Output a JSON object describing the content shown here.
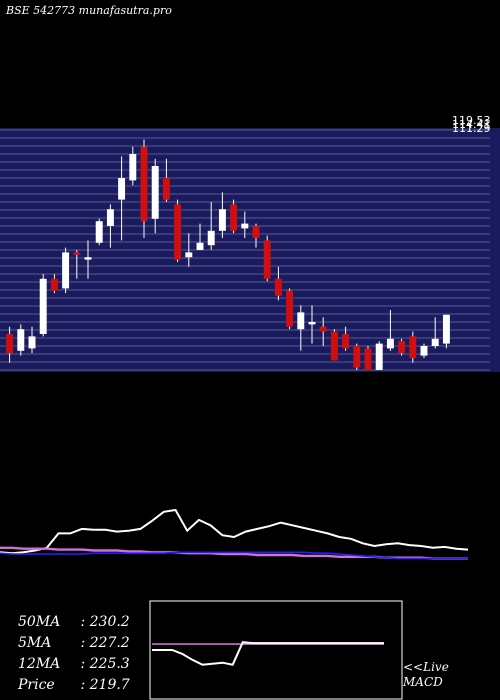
{
  "header": {
    "exchange": "BSE",
    "code": "542773",
    "site": "munafasutra.pro"
  },
  "colors": {
    "background": "#000000",
    "price_panel_bg": "#1a1a5e",
    "grid_line": "#ffffff",
    "up_candle": "#ffffff",
    "down_candle": "#d01010",
    "ma_fast_line": "#ffffff",
    "ma_slow_line": "#d070d0",
    "ma_blue_line": "#2020ff",
    "macd_line": "#ffffff",
    "signal_line": "#d070d0"
  },
  "price_axis_labels": [
    "119.53",
    "114.41",
    "111.29"
  ],
  "stats": [
    {
      "label": "50MA",
      "value": "230.2"
    },
    {
      "label": "5MA",
      "value": "227.2"
    },
    {
      "label": "12MA",
      "value": "225.3"
    },
    {
      "label": "Price",
      "value": "219.7"
    }
  ],
  "live_link": {
    "line1": "<<Live",
    "line2": "MACD"
  },
  "chart_data": {
    "type": "candlestick",
    "candles": [
      {
        "o": 0.15,
        "c": 0.07,
        "h": 0.18,
        "l": 0.03
      },
      {
        "o": 0.08,
        "c": 0.17,
        "h": 0.19,
        "l": 0.06
      },
      {
        "o": 0.09,
        "c": 0.14,
        "h": 0.18,
        "l": 0.07
      },
      {
        "o": 0.15,
        "c": 0.38,
        "h": 0.4,
        "l": 0.14
      },
      {
        "o": 0.38,
        "c": 0.33,
        "h": 0.4,
        "l": 0.32
      },
      {
        "o": 0.34,
        "c": 0.49,
        "h": 0.51,
        "l": 0.32
      },
      {
        "o": 0.49,
        "c": 0.48,
        "h": 0.5,
        "l": 0.38
      },
      {
        "o": 0.46,
        "c": 0.47,
        "h": 0.54,
        "l": 0.38
      },
      {
        "o": 0.53,
        "c": 0.62,
        "h": 0.63,
        "l": 0.52
      },
      {
        "o": 0.6,
        "c": 0.67,
        "h": 0.69,
        "l": 0.51
      },
      {
        "o": 0.71,
        "c": 0.8,
        "h": 0.89,
        "l": 0.54
      },
      {
        "o": 0.79,
        "c": 0.9,
        "h": 0.93,
        "l": 0.77
      },
      {
        "o": 0.93,
        "c": 0.62,
        "h": 0.96,
        "l": 0.55
      },
      {
        "o": 0.63,
        "c": 0.85,
        "h": 0.88,
        "l": 0.57
      },
      {
        "o": 0.8,
        "c": 0.71,
        "h": 0.88,
        "l": 0.7
      },
      {
        "o": 0.69,
        "c": 0.46,
        "h": 0.71,
        "l": 0.45
      },
      {
        "o": 0.47,
        "c": 0.49,
        "h": 0.57,
        "l": 0.43
      },
      {
        "o": 0.5,
        "c": 0.53,
        "h": 0.61,
        "l": 0.5
      },
      {
        "o": 0.52,
        "c": 0.58,
        "h": 0.7,
        "l": 0.5
      },
      {
        "o": 0.58,
        "c": 0.67,
        "h": 0.74,
        "l": 0.55
      },
      {
        "o": 0.69,
        "c": 0.58,
        "h": 0.71,
        "l": 0.57
      },
      {
        "o": 0.59,
        "c": 0.61,
        "h": 0.66,
        "l": 0.55
      },
      {
        "o": 0.6,
        "c": 0.55,
        "h": 0.61,
        "l": 0.51
      },
      {
        "o": 0.54,
        "c": 0.38,
        "h": 0.56,
        "l": 0.37
      },
      {
        "o": 0.38,
        "c": 0.31,
        "h": 0.43,
        "l": 0.29
      },
      {
        "o": 0.33,
        "c": 0.18,
        "h": 0.34,
        "l": 0.17
      },
      {
        "o": 0.17,
        "c": 0.24,
        "h": 0.27,
        "l": 0.08
      },
      {
        "o": 0.19,
        "c": 0.2,
        "h": 0.27,
        "l": 0.11
      },
      {
        "o": 0.18,
        "c": 0.16,
        "h": 0.22,
        "l": 0.1
      },
      {
        "o": 0.16,
        "c": 0.04,
        "h": 0.17,
        "l": 0.04
      },
      {
        "o": 0.15,
        "c": 0.09,
        "h": 0.18,
        "l": 0.08
      },
      {
        "o": 0.1,
        "c": 0.01,
        "h": 0.11,
        "l": 0.0
      },
      {
        "o": 0.09,
        "c": 0.0,
        "h": 0.1,
        "l": 0.0
      },
      {
        "o": 0.0,
        "c": 0.11,
        "h": 0.12,
        "l": 0.0
      },
      {
        "o": 0.09,
        "c": 0.13,
        "h": 0.25,
        "l": 0.08
      },
      {
        "o": 0.12,
        "c": 0.07,
        "h": 0.13,
        "l": 0.06
      },
      {
        "o": 0.14,
        "c": 0.05,
        "h": 0.16,
        "l": 0.03
      },
      {
        "o": 0.06,
        "c": 0.1,
        "h": 0.11,
        "l": 0.05
      },
      {
        "o": 0.1,
        "c": 0.13,
        "h": 0.22,
        "l": 0.09
      },
      {
        "o": 0.11,
        "c": 0.23,
        "h": 0.23,
        "l": 0.09
      }
    ],
    "indicator_lines": [
      {
        "name": "fast",
        "values": [
          0.53,
          0.52,
          0.53,
          0.55,
          0.58,
          0.74,
          0.74,
          0.79,
          0.78,
          0.78,
          0.76,
          0.77,
          0.79,
          0.88,
          0.98,
          1.0,
          0.77,
          0.89,
          0.83,
          0.72,
          0.7,
          0.76,
          0.79,
          0.82,
          0.86,
          0.83,
          0.8,
          0.77,
          0.74,
          0.7,
          0.68,
          0.63,
          0.6,
          0.62,
          0.63,
          0.61,
          0.6,
          0.58,
          0.59,
          0.57,
          0.56
        ]
      },
      {
        "name": "slow",
        "values": [
          0.58,
          0.58,
          0.57,
          0.57,
          0.57,
          0.56,
          0.56,
          0.56,
          0.55,
          0.55,
          0.55,
          0.54,
          0.54,
          0.53,
          0.53,
          0.53,
          0.52,
          0.52,
          0.52,
          0.51,
          0.51,
          0.51,
          0.5,
          0.5,
          0.5,
          0.5,
          0.49,
          0.49,
          0.49,
          0.48,
          0.48,
          0.48,
          0.48,
          0.47,
          0.47,
          0.47,
          0.47,
          0.46,
          0.46,
          0.46,
          0.46
        ]
      },
      {
        "name": "blue",
        "values": [
          0.52,
          0.51,
          0.51,
          0.51,
          0.51,
          0.51,
          0.51,
          0.51,
          0.52,
          0.52,
          0.52,
          0.52,
          0.52,
          0.52,
          0.52,
          0.53,
          0.53,
          0.53,
          0.53,
          0.53,
          0.53,
          0.53,
          0.53,
          0.53,
          0.53,
          0.53,
          0.53,
          0.52,
          0.52,
          0.51,
          0.5,
          0.49,
          0.48,
          0.47,
          0.46,
          0.46,
          0.46,
          0.46,
          0.46,
          0.46,
          0.46
        ]
      }
    ],
    "macd": {
      "macd_line": [
        0.5,
        0.5,
        0.5,
        0.46,
        0.4,
        0.35,
        0.36,
        0.37,
        0.35,
        0.58,
        0.57,
        0.57,
        0.57,
        0.57,
        0.57,
        0.57,
        0.57,
        0.57,
        0.57,
        0.57,
        0.57,
        0.57,
        0.57,
        0.57
      ],
      "signal_line": [
        0.56,
        0.56,
        0.56,
        0.56,
        0.56,
        0.56,
        0.56,
        0.56,
        0.56,
        0.56,
        0.56,
        0.56,
        0.56,
        0.56,
        0.56,
        0.56,
        0.56,
        0.56,
        0.56,
        0.56,
        0.56,
        0.56,
        0.56,
        0.56
      ]
    }
  }
}
